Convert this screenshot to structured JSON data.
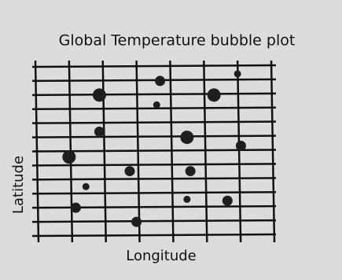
{
  "chart_data": {
    "type": "bubble",
    "title": "Global Temperature bubble plot",
    "x_label": "Longitude",
    "y_label": "Latitude",
    "x": [
      1.9,
      3.7,
      6.0,
      3.6,
      5.3,
      1.9,
      4.5,
      6.1,
      1.0,
      2.8,
      4.6,
      1.5,
      4.5,
      5.7,
      1.2,
      3.0
    ],
    "y": [
      10.0,
      11.0,
      11.5,
      9.3,
      10.0,
      7.4,
      7.0,
      6.4,
      5.6,
      4.6,
      4.6,
      3.5,
      2.6,
      2.5,
      2.0,
      1.0
    ],
    "sizes": [
      3,
      2,
      1,
      1,
      3,
      2,
      3,
      2,
      3,
      2,
      2,
      1,
      1,
      2,
      2,
      2
    ],
    "color": "#1e1e1e",
    "xlim": [
      0,
      7
    ],
    "ylim": [
      0,
      12
    ],
    "grid": true
  }
}
